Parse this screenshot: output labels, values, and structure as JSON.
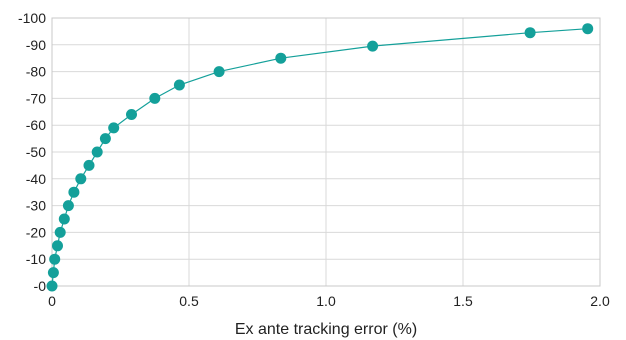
{
  "chart_data": {
    "type": "scatter",
    "title": "",
    "xlabel": "Ex ante tracking error (%)",
    "ylabel": "",
    "xlim": [
      0,
      2.0
    ],
    "ylim": [
      0,
      -100
    ],
    "x_ticks": [
      "0",
      "0.5",
      "1.0",
      "1.5",
      "2.0"
    ],
    "y_ticks": [
      "-0",
      "-10",
      "-20",
      "-30",
      "-40",
      "-50",
      "-60",
      "-70",
      "-80",
      "-90",
      "-100"
    ],
    "grid": true,
    "legend": "none",
    "colors": {
      "series": "#14a09a",
      "grid": "#d9d9d9",
      "frame": "#c8c8c8"
    },
    "series": [
      {
        "style": "line+markers",
        "points": [
          {
            "x": 0.0,
            "y": 0
          },
          {
            "x": 0.005,
            "y": -5
          },
          {
            "x": 0.01,
            "y": -10
          },
          {
            "x": 0.02,
            "y": -15
          },
          {
            "x": 0.03,
            "y": -20
          },
          {
            "x": 0.045,
            "y": -25
          },
          {
            "x": 0.06,
            "y": -30
          },
          {
            "x": 0.08,
            "y": -35
          },
          {
            "x": 0.105,
            "y": -40
          },
          {
            "x": 0.135,
            "y": -45
          },
          {
            "x": 0.165,
            "y": -50
          },
          {
            "x": 0.195,
            "y": -55
          },
          {
            "x": 0.225,
            "y": -59
          },
          {
            "x": 0.29,
            "y": -64
          },
          {
            "x": 0.375,
            "y": -70
          },
          {
            "x": 0.465,
            "y": -75
          },
          {
            "x": 0.61,
            "y": -80
          },
          {
            "x": 0.835,
            "y": -85
          },
          {
            "x": 1.17,
            "y": -89.5
          },
          {
            "x": 1.745,
            "y": -94.5
          },
          {
            "x": 1.955,
            "y": -96
          }
        ]
      }
    ]
  }
}
